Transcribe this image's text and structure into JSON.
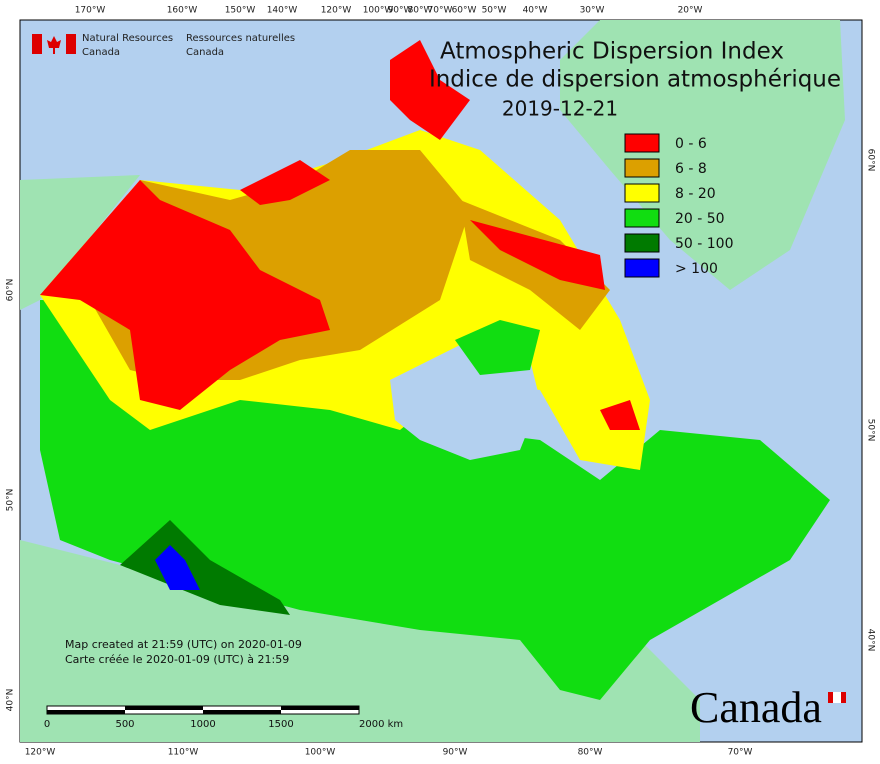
{
  "header": {
    "logo_en": [
      "Natural Resources",
      "Canada"
    ],
    "logo_fr": [
      "Ressources naturelles",
      "Canada"
    ]
  },
  "title": {
    "en": "Atmospheric Dispersion Index",
    "fr": "Indice de dispersion atmosphérique",
    "date": "2019-12-21"
  },
  "legend": [
    {
      "label": "0 - 6",
      "color": "#ff0000"
    },
    {
      "label": "6 - 8",
      "color": "#dca000"
    },
    {
      "label": "8 - 20",
      "color": "#ffff00"
    },
    {
      "label": "20 - 50",
      "color": "#11dd11"
    },
    {
      "label": "50 - 100",
      "color": "#007a00"
    },
    {
      "label": "> 100",
      "color": "#0000ff"
    }
  ],
  "axis_labels": {
    "top": [
      "170°W",
      "160°W",
      "150°W",
      "140°W",
      "120°W",
      "100°W",
      "90°W",
      "80°W",
      "70°W",
      "60°W",
      "50°W",
      "40°W",
      "30°W",
      "20°W"
    ],
    "bottom": [
      "120°W",
      "110°W",
      "100°W",
      "90°W",
      "80°W",
      "70°W"
    ],
    "left": [
      "60°N",
      "50°N",
      "40°N"
    ],
    "right": [
      "60°N",
      "50°N",
      "40°N"
    ]
  },
  "notes": [
    "Map created at 21:59 (UTC) on 2020-01-09",
    "Carte créée le 2020-01-09 (UTC) à 21:59"
  ],
  "scale_bar": {
    "labels": [
      "0",
      "500",
      "1000",
      "1500",
      "2000 km"
    ]
  },
  "wordmark": "Canada"
}
